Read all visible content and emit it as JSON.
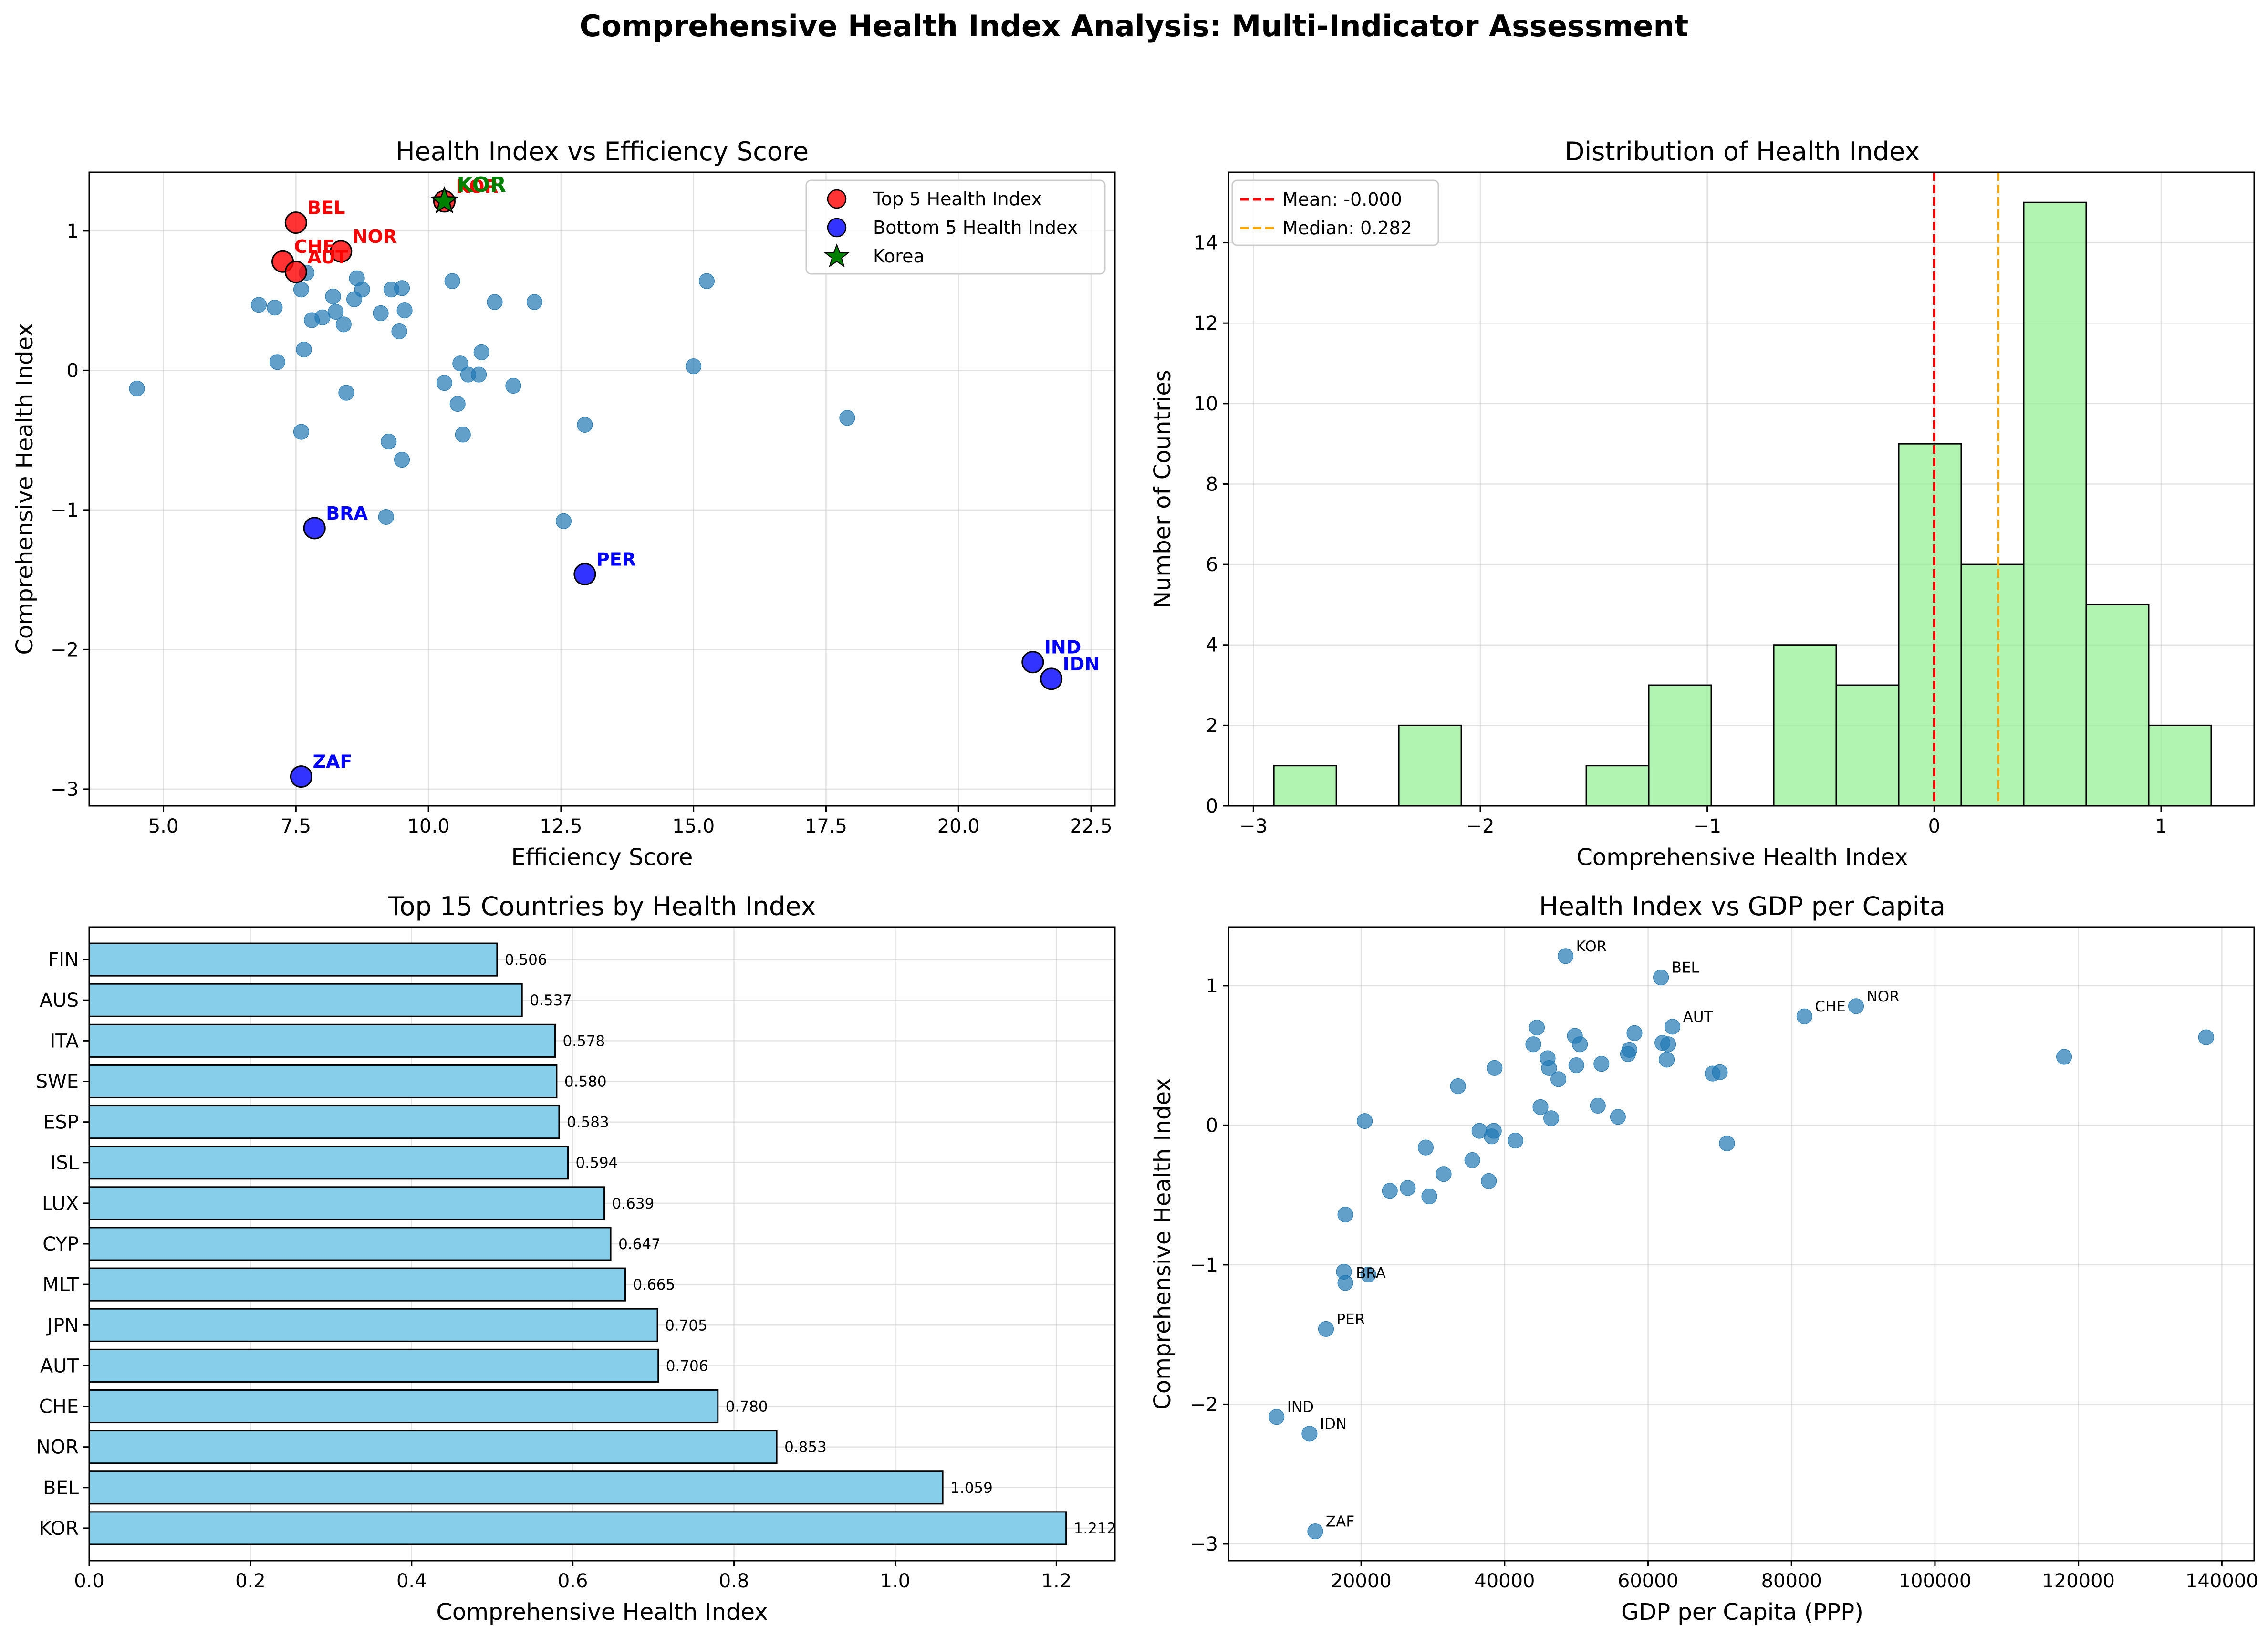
{
  "figure_title": "Comprehensive Health Index Analysis: Multi-Indicator Assessment",
  "colors": {
    "scatter": "#1f77b4",
    "top5": "#ff0000",
    "bottom5": "#0000ff",
    "korea": "#008000",
    "hist_fill": "#90ee90",
    "bar_fill": "#87ceeb",
    "mean_line": "#ff0000",
    "median_line": "#ffa500"
  },
  "chart_data": [
    {
      "id": "efficiency",
      "type": "scatter",
      "title": "Health Index vs Efficiency Score",
      "xlabel": "Efficiency Score",
      "ylabel": "Comprehensive Health Index",
      "xlim": [
        3.6,
        22.95
      ],
      "ylim": [
        -3.12,
        1.42
      ],
      "xticks": [
        5.0,
        7.5,
        10.0,
        12.5,
        15.0,
        17.5,
        20.0,
        22.5
      ],
      "xtick_labels": [
        "5.0",
        "7.5",
        "10.0",
        "12.5",
        "15.0",
        "17.5",
        "20.0",
        "22.5"
      ],
      "yticks": [
        -3,
        -2,
        -1,
        0,
        1
      ],
      "ytick_labels": [
        "−3",
        "−2",
        "−1",
        "0",
        "1"
      ],
      "grid": true,
      "legend_position": "top-right",
      "legend": [
        "Top 5 Health Index",
        "Bottom 5 Health Index",
        "Korea"
      ],
      "points": [
        [
          4.5,
          -0.13
        ],
        [
          6.8,
          0.47
        ],
        [
          7.1,
          0.45
        ],
        [
          7.15,
          0.06
        ],
        [
          7.6,
          -0.44
        ],
        [
          7.6,
          0.58
        ],
        [
          7.65,
          0.15
        ],
        [
          7.7,
          0.7
        ],
        [
          7.8,
          0.36
        ],
        [
          8.0,
          0.38
        ],
        [
          8.2,
          0.53
        ],
        [
          8.25,
          0.42
        ],
        [
          8.4,
          0.33
        ],
        [
          8.45,
          -0.16
        ],
        [
          8.6,
          0.51
        ],
        [
          8.65,
          0.66
        ],
        [
          8.75,
          0.58
        ],
        [
          9.1,
          0.41
        ],
        [
          9.2,
          -1.05
        ],
        [
          9.25,
          -0.51
        ],
        [
          9.3,
          0.58
        ],
        [
          9.45,
          0.28
        ],
        [
          9.5,
          -0.64
        ],
        [
          9.5,
          0.59
        ],
        [
          9.55,
          0.43
        ],
        [
          10.3,
          -0.09
        ],
        [
          10.45,
          0.64
        ],
        [
          10.55,
          -0.24
        ],
        [
          10.6,
          0.05
        ],
        [
          10.65,
          -0.46
        ],
        [
          10.75,
          -0.03
        ],
        [
          10.95,
          -0.03
        ],
        [
          11.0,
          0.13
        ],
        [
          11.25,
          0.49
        ],
        [
          11.6,
          -0.11
        ],
        [
          12.0,
          0.49
        ],
        [
          12.55,
          -1.08
        ],
        [
          12.95,
          -0.39
        ],
        [
          15.0,
          0.03
        ],
        [
          15.25,
          0.64
        ],
        [
          17.9,
          -0.34
        ]
      ],
      "top5": [
        {
          "label": "BEL",
          "x": 7.5,
          "y": 1.059
        },
        {
          "label": "NOR",
          "x": 8.35,
          "y": 0.853
        },
        {
          "label": "CHE",
          "x": 7.25,
          "y": 0.78
        },
        {
          "label": "AUT",
          "x": 7.5,
          "y": 0.706
        },
        {
          "label": "KOR",
          "x": 10.3,
          "y": 1.212
        }
      ],
      "bottom5": [
        {
          "label": "BRA",
          "x": 7.85,
          "y": -1.13
        },
        {
          "label": "PER",
          "x": 12.95,
          "y": -1.46
        },
        {
          "label": "IND",
          "x": 21.4,
          "y": -2.09
        },
        {
          "label": "IDN",
          "x": 21.75,
          "y": -2.21
        },
        {
          "label": "ZAF",
          "x": 7.6,
          "y": -2.91
        }
      ],
      "korea": {
        "label": "KOR",
        "x": 10.3,
        "y": 1.212
      }
    },
    {
      "id": "distribution",
      "type": "histogram",
      "title": "Distribution of Health Index",
      "xlabel": "Comprehensive Health Index",
      "ylabel": "Number of Countries",
      "xlim": [
        -3.11,
        1.41
      ],
      "ylim": [
        0,
        15.75
      ],
      "xticks": [
        -3,
        -2,
        -1,
        0,
        1
      ],
      "xtick_labels": [
        "−3",
        "−2",
        "−1",
        "0",
        "1"
      ],
      "yticks": [
        0,
        2,
        4,
        6,
        8,
        10,
        12,
        14
      ],
      "ytick_labels": [
        "0",
        "2",
        "4",
        "6",
        "8",
        "10",
        "12",
        "14"
      ],
      "grid": true,
      "legend_position": "top-left",
      "bin_edges": [
        -2.91,
        -2.6346,
        -2.3593,
        -2.0839,
        -1.8085,
        -1.5331,
        -1.2578,
        -0.9824,
        -0.707,
        -0.4316,
        -0.1562,
        0.1191,
        0.3945,
        0.6699,
        0.9453,
        1.2207
      ],
      "counts": [
        1,
        0,
        2,
        0,
        0,
        1,
        3,
        0,
        4,
        3,
        9,
        6,
        15,
        5,
        2
      ],
      "mean": -0.0,
      "median": 0.282,
      "mean_label": "Mean: -0.000",
      "median_label": "Median: 0.282"
    },
    {
      "id": "top15",
      "type": "bar",
      "orientation": "horizontal",
      "title": "Top 15 Countries by Health Index",
      "xlabel": "Comprehensive Health Index",
      "ylabel": "",
      "xlim": [
        0,
        1.2726
      ],
      "xticks": [
        0.0,
        0.2,
        0.4,
        0.6,
        0.8,
        1.0,
        1.2
      ],
      "xtick_labels": [
        "0.0",
        "0.2",
        "0.4",
        "0.6",
        "0.8",
        "1.0",
        "1.2"
      ],
      "grid": true,
      "categories": [
        "KOR",
        "BEL",
        "NOR",
        "CHE",
        "AUT",
        "JPN",
        "MLT",
        "CYP",
        "LUX",
        "ISL",
        "ESP",
        "SWE",
        "ITA",
        "AUS",
        "FIN"
      ],
      "values": [
        1.212,
        1.059,
        0.853,
        0.78,
        0.706,
        0.705,
        0.665,
        0.647,
        0.639,
        0.594,
        0.583,
        0.58,
        0.578,
        0.537,
        0.506
      ],
      "value_labels": [
        "1.212",
        "1.059",
        "0.853",
        "0.780",
        "0.706",
        "0.705",
        "0.665",
        "0.647",
        "0.639",
        "0.594",
        "0.583",
        "0.580",
        "0.578",
        "0.537",
        "0.506"
      ]
    },
    {
      "id": "gdp",
      "type": "scatter",
      "title": "Health Index vs GDP per Capita",
      "xlabel": "GDP per Capita (PPP)",
      "ylabel": "Comprehensive Health Index",
      "xlim": [
        1500,
        144500
      ],
      "ylim": [
        -3.12,
        1.42
      ],
      "xticks": [
        20000,
        40000,
        60000,
        80000,
        100000,
        120000,
        140000
      ],
      "xtick_labels": [
        "20000",
        "40000",
        "60000",
        "80000",
        "100000",
        "120000",
        "140000"
      ],
      "yticks": [
        -3,
        -2,
        -1,
        0,
        1
      ],
      "ytick_labels": [
        "−3",
        "−2",
        "−1",
        "0",
        "1"
      ],
      "grid": true,
      "points": [
        [
          17800,
          -0.64
        ],
        [
          17600,
          -1.05
        ],
        [
          20500,
          0.03
        ],
        [
          21000,
          -1.07
        ],
        [
          24000,
          -0.47
        ],
        [
          26500,
          -0.45
        ],
        [
          29000,
          -0.16
        ],
        [
          29500,
          -0.51
        ],
        [
          31500,
          -0.35
        ],
        [
          33500,
          0.28
        ],
        [
          35500,
          -0.25
        ],
        [
          36500,
          -0.04
        ],
        [
          37800,
          -0.4
        ],
        [
          38200,
          -0.08
        ],
        [
          38500,
          -0.04
        ],
        [
          38600,
          0.41
        ],
        [
          41500,
          -0.11
        ],
        [
          44000,
          0.58
        ],
        [
          44500,
          0.7
        ],
        [
          45000,
          0.13
        ],
        [
          46000,
          0.48
        ],
        [
          46200,
          0.41
        ],
        [
          46500,
          0.05
        ],
        [
          47500,
          0.33
        ],
        [
          49800,
          0.64
        ],
        [
          50000,
          0.43
        ],
        [
          50500,
          0.58
        ],
        [
          53000,
          0.14
        ],
        [
          53500,
          0.44
        ],
        [
          55800,
          0.06
        ],
        [
          57200,
          0.51
        ],
        [
          57400,
          0.54
        ],
        [
          58100,
          0.66
        ],
        [
          62000,
          0.59
        ],
        [
          62800,
          0.58
        ],
        [
          62600,
          0.47
        ],
        [
          69000,
          0.37
        ],
        [
          70000,
          0.38
        ],
        [
          71000,
          -0.13
        ],
        [
          118000,
          0.49
        ],
        [
          137800,
          0.63
        ]
      ],
      "labeled_points": [
        {
          "label": "KOR",
          "x": 48500,
          "y": 1.212
        },
        {
          "label": "BEL",
          "x": 61800,
          "y": 1.059
        },
        {
          "label": "AUT",
          "x": 63400,
          "y": 0.706
        },
        {
          "label": "CHE",
          "x": 81800,
          "y": 0.78
        },
        {
          "label": "NOR",
          "x": 89000,
          "y": 0.853
        },
        {
          "label": "BRA",
          "x": 17800,
          "y": -1.13
        },
        {
          "label": "PER",
          "x": 15100,
          "y": -1.46
        },
        {
          "label": "IND",
          "x": 8200,
          "y": -2.09
        },
        {
          "label": "IDN",
          "x": 12800,
          "y": -2.21
        },
        {
          "label": "ZAF",
          "x": 13600,
          "y": -2.91
        }
      ]
    }
  ]
}
